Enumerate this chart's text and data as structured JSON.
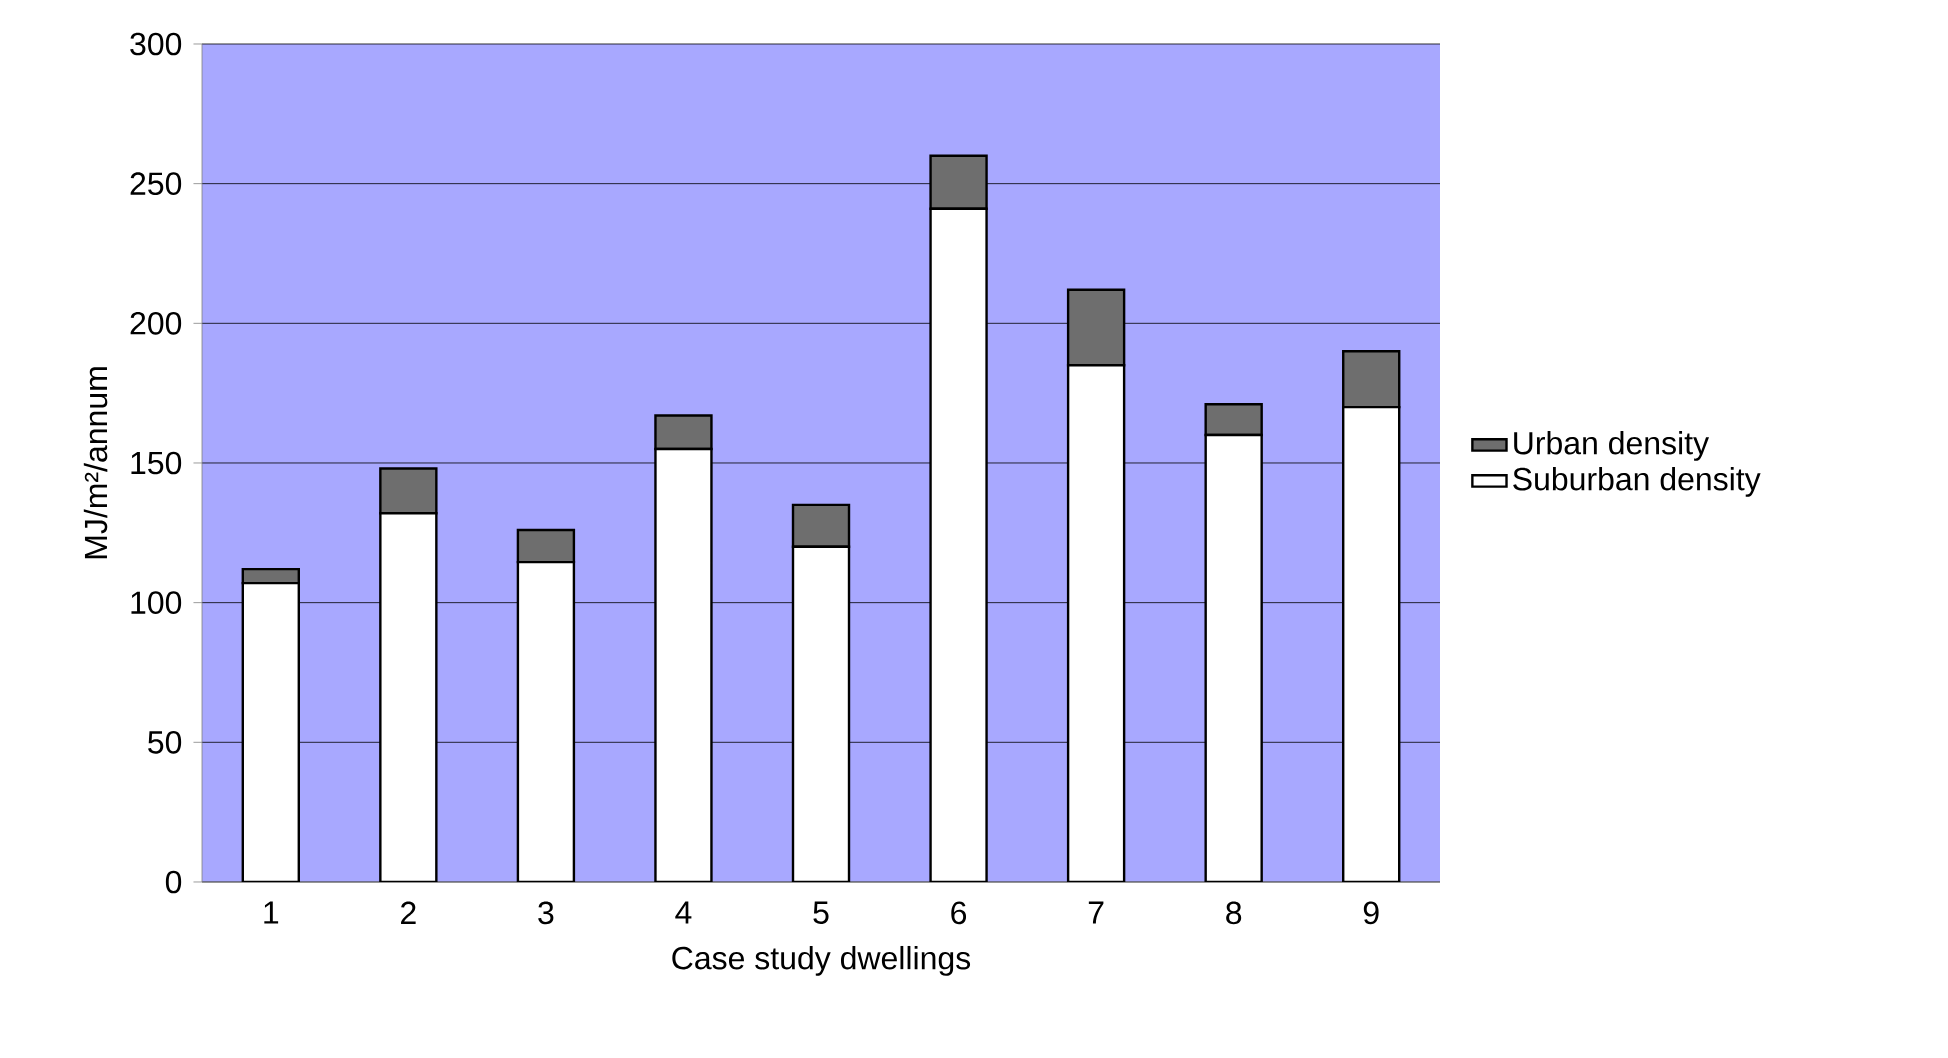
{
  "chart_data": {
    "type": "bar",
    "stacked": true,
    "xlabel": "Case study dwellings",
    "ylabel": "MJ/m²/annum",
    "categories": [
      "1",
      "2",
      "3",
      "4",
      "5",
      "6",
      "7",
      "8",
      "9"
    ],
    "series": [
      {
        "name": "Suburban density",
        "color": "#ffffff",
        "values": [
          107,
          132,
          114.5,
          155,
          120,
          241,
          185,
          160,
          170
        ]
      },
      {
        "name": "Urban density",
        "color": "#6e6e6e",
        "values": [
          5,
          16,
          11.5,
          12,
          15,
          19,
          27,
          11,
          20
        ]
      }
    ],
    "ylim": [
      0,
      300
    ],
    "yticks": [
      0,
      50,
      100,
      150,
      200,
      250,
      300
    ],
    "grid": "y",
    "legend": "right"
  }
}
